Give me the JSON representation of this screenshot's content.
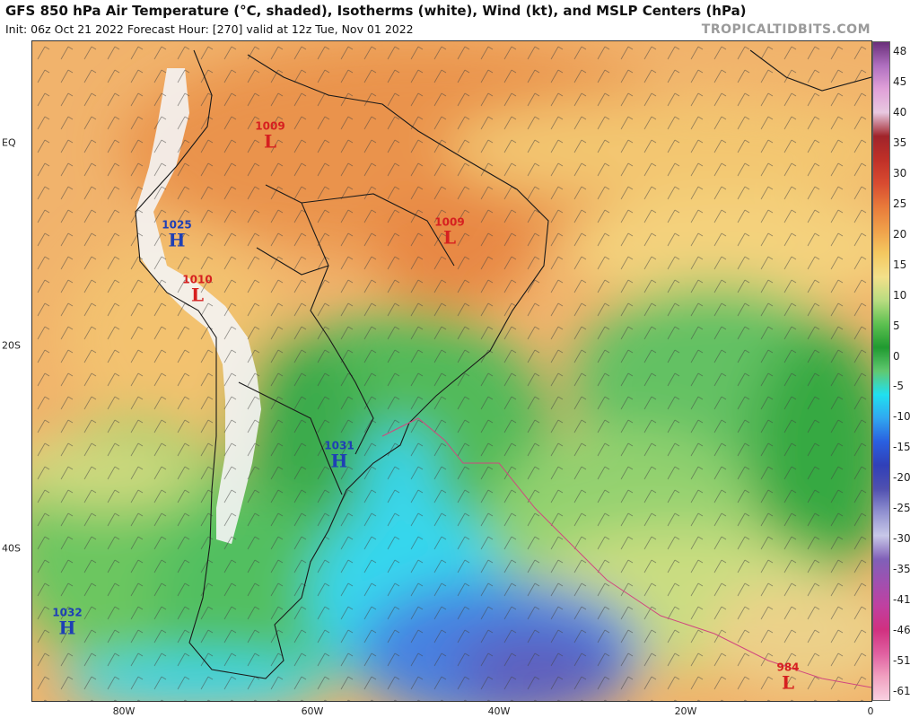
{
  "header": {
    "title": "GFS 850 hPa Air Temperature (°C, shaded), Isotherms (white), Wind (kt), and MSLP Centers (hPa)",
    "subtitle": "Init: 06z Oct 21 2022   Forecast Hour: [270]   valid at 12z Tue, Nov 01 2022",
    "brand": "TROPICALTIDBITS.COM"
  },
  "axes": {
    "latitude_labels": [
      "EQ",
      "20S",
      "40S"
    ],
    "longitude_labels": [
      "80W",
      "60W",
      "40W",
      "20W",
      "0"
    ]
  },
  "colorbar": {
    "labels": [
      "48",
      "45",
      "40",
      "35",
      "30",
      "25",
      "20",
      "15",
      "10",
      "5",
      "0",
      "-5",
      "-10",
      "-15",
      "-20",
      "-25",
      "-30",
      "-35",
      "-41",
      "-46",
      "-51",
      "-61"
    ],
    "colors": [
      "#7a3b8c",
      "#e09ad0",
      "#f3c1e0",
      "#c0302e",
      "#e05a3a",
      "#f08a3c",
      "#f4b35a",
      "#f6d78a",
      "#9ad36a",
      "#2fae3d",
      "#6fcf7a",
      "#2fd4f0",
      "#2a6fe0",
      "#3a4fc0",
      "#8a8ad0",
      "#6b4fb0",
      "#a070c0",
      "#c05aa0",
      "#e04a80",
      "#f07aa0",
      "#f5b0c8",
      "#f8d8e8"
    ],
    "color_stops": [
      "#6a2f7a",
      "#b070c0",
      "#e0a0d8",
      "#e8c8e0",
      "#a0242a",
      "#c03028",
      "#d84a30",
      "#e87a3a",
      "#f0a04a",
      "#f4c860",
      "#f3e08a",
      "#b8dc80",
      "#5cc050",
      "#209a30",
      "#60c870",
      "#20e0f0",
      "#30a8f0",
      "#2a60e0",
      "#3040b8",
      "#5050b0",
      "#9090d0",
      "#c8c8e8",
      "#8060b8",
      "#a050b0",
      "#c040a0",
      "#d03080",
      "#e060a0",
      "#f0a0c0",
      "#f8d0e0"
    ]
  },
  "pressure_centers": [
    {
      "type": "low",
      "value": "1009",
      "letter": "L"
    },
    {
      "type": "low",
      "value": "1009",
      "letter": "L"
    },
    {
      "type": "high",
      "value": "1025",
      "letter": "H"
    },
    {
      "type": "low",
      "value": "1010",
      "letter": "L"
    },
    {
      "type": "high",
      "value": "1031",
      "letter": "H"
    },
    {
      "type": "high",
      "value": "1032",
      "letter": "H"
    },
    {
      "type": "low",
      "value": "984",
      "letter": "L"
    }
  ]
}
